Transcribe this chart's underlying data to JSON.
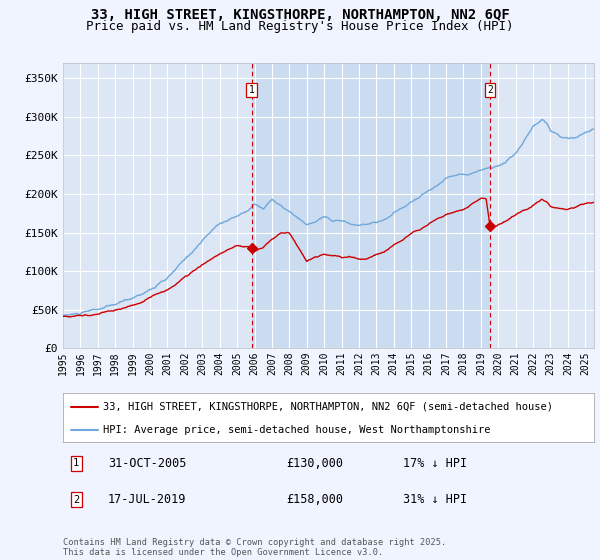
{
  "title_line1": "33, HIGH STREET, KINGSTHORPE, NORTHAMPTON, NN2 6QF",
  "title_line2": "Price paid vs. HM Land Registry's House Price Index (HPI)",
  "ylabel_ticks": [
    "£0",
    "£50K",
    "£100K",
    "£150K",
    "£200K",
    "£250K",
    "£300K",
    "£350K"
  ],
  "ylabel_values": [
    0,
    50000,
    100000,
    150000,
    200000,
    250000,
    300000,
    350000
  ],
  "ylim": [
    0,
    370000
  ],
  "xlim_start": 1995.0,
  "xlim_end": 2025.5,
  "background_color": "#f0f4ff",
  "plot_bg_color": "#dce6f5",
  "shaded_color": "#ccdcf0",
  "grid_color": "#ffffff",
  "hpi_color": "#6fa8dc",
  "price_color": "#cc0000",
  "dashed_line_color": "#cc0000",
  "legend_label_price": "33, HIGH STREET, KINGSTHORPE, NORTHAMPTON, NN2 6QF (semi-detached house)",
  "legend_label_hpi": "HPI: Average price, semi-detached house, West Northamptonshire",
  "marker1_x": 2005.83,
  "marker1_price": 130000,
  "marker2_x": 2019.54,
  "marker2_price": 158000,
  "footer": "Contains HM Land Registry data © Crown copyright and database right 2025.\nThis data is licensed under the Open Government Licence v3.0.",
  "xtick_years": [
    1995,
    1996,
    1997,
    1998,
    1999,
    2000,
    2001,
    2002,
    2003,
    2004,
    2005,
    2006,
    2007,
    2008,
    2009,
    2010,
    2011,
    2012,
    2013,
    2014,
    2015,
    2016,
    2017,
    2018,
    2019,
    2020,
    2021,
    2022,
    2023,
    2024,
    2025
  ]
}
